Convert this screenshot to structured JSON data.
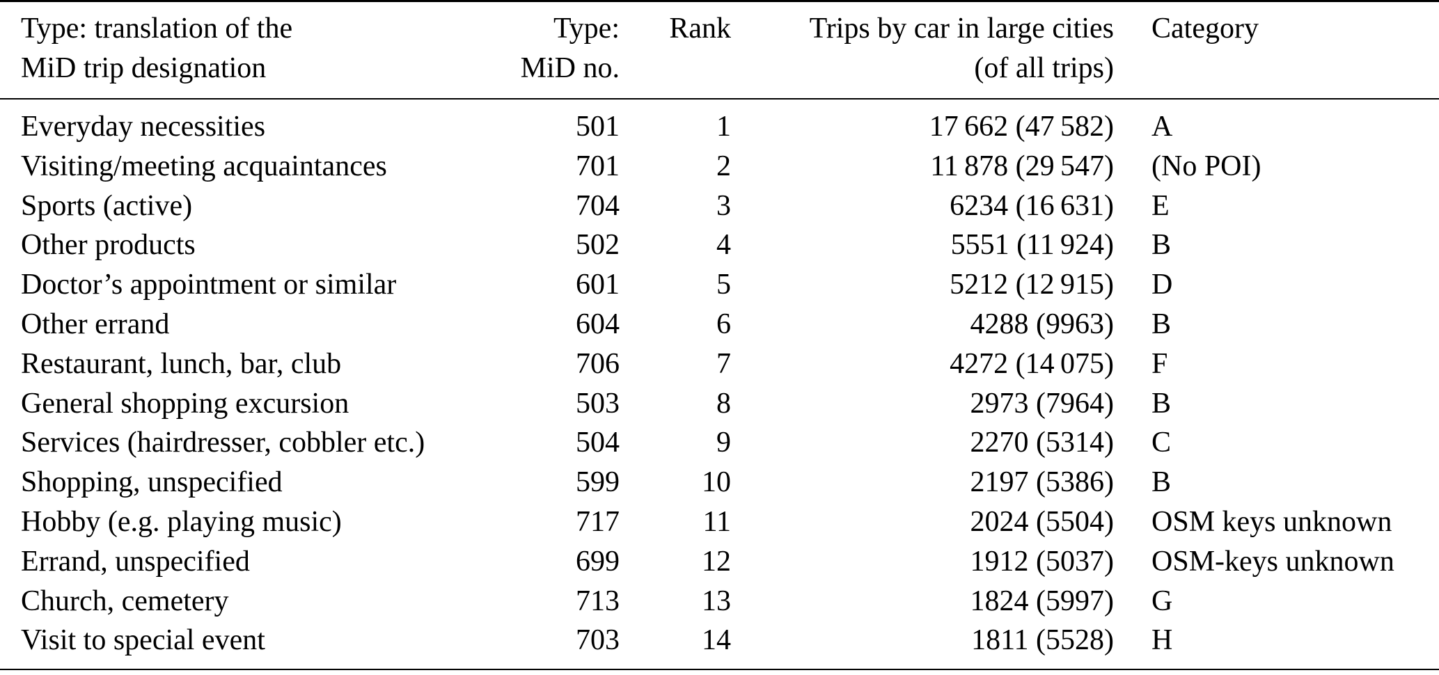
{
  "colors": {
    "background": "#ffffff",
    "text": "#000000",
    "rule": "#000000"
  },
  "table": {
    "header": {
      "columns": [
        {
          "id": "designation",
          "line1": "Type: translation of the",
          "line2": "MiD trip designation",
          "align": "left"
        },
        {
          "id": "mid_no",
          "line1": "Type:",
          "line2": "MiD no.",
          "align": "right"
        },
        {
          "id": "rank",
          "line1": "Rank",
          "line2": "",
          "align": "right"
        },
        {
          "id": "trips",
          "line1": "Trips by car in large cities",
          "line2": "(of all trips)",
          "align": "right"
        },
        {
          "id": "category",
          "line1": "Category",
          "line2": "",
          "align": "left"
        }
      ]
    },
    "row_fields": [
      "designation",
      "mid_no",
      "rank",
      "trips",
      "category"
    ],
    "rows": [
      {
        "designation": "Everyday necessities",
        "mid_no": "501",
        "rank": "1",
        "trips": "17 662 (47 582)",
        "category": "A"
      },
      {
        "designation": "Visiting/meeting acquaintances",
        "mid_no": "701",
        "rank": "2",
        "trips": "11 878 (29 547)",
        "category": "(No POI)"
      },
      {
        "designation": "Sports (active)",
        "mid_no": "704",
        "rank": "3",
        "trips": "6234 (16 631)",
        "category": "E"
      },
      {
        "designation": "Other products",
        "mid_no": "502",
        "rank": "4",
        "trips": "5551 (11 924)",
        "category": "B"
      },
      {
        "designation": "Doctor’s appointment or similar",
        "mid_no": "601",
        "rank": "5",
        "trips": "5212 (12 915)",
        "category": "D"
      },
      {
        "designation": "Other errand",
        "mid_no": "604",
        "rank": "6",
        "trips": "4288 (9963)",
        "category": "B"
      },
      {
        "designation": "Restaurant, lunch, bar, club",
        "mid_no": "706",
        "rank": "7",
        "trips": "4272 (14 075)",
        "category": "F"
      },
      {
        "designation": "General shopping excursion",
        "mid_no": "503",
        "rank": "8",
        "trips": "2973 (7964)",
        "category": "B"
      },
      {
        "designation": "Services (hairdresser, cobbler etc.)",
        "mid_no": "504",
        "rank": "9",
        "trips": "2270 (5314)",
        "category": "C"
      },
      {
        "designation": "Shopping, unspecified",
        "mid_no": "599",
        "rank": "10",
        "trips": "2197 (5386)",
        "category": "B"
      },
      {
        "designation": "Hobby (e.g. playing music)",
        "mid_no": "717",
        "rank": "11",
        "trips": "2024 (5504)",
        "category": "OSM keys unknown"
      },
      {
        "designation": "Errand, unspecified",
        "mid_no": "699",
        "rank": "12",
        "trips": "1912 (5037)",
        "category": "OSM-keys unknown"
      },
      {
        "designation": "Church, cemetery",
        "mid_no": "713",
        "rank": "13",
        "trips": "1824 (5997)",
        "category": "G"
      },
      {
        "designation": "Visit to special event",
        "mid_no": "703",
        "rank": "14",
        "trips": "1811 (5528)",
        "category": "H"
      }
    ]
  }
}
